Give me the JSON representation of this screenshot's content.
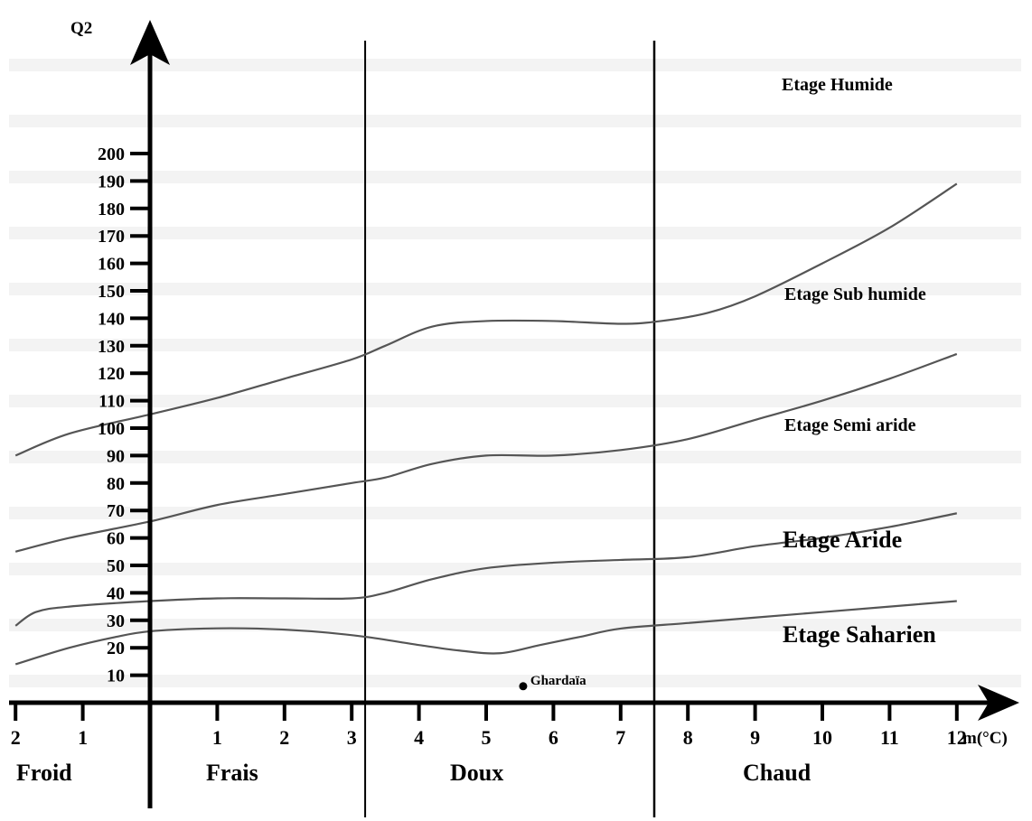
{
  "chart_data": {
    "type": "line",
    "ylabel": "Q2",
    "xlabel": "m(°C)",
    "y_ticks": [
      "200",
      "190",
      "180",
      "170",
      "160",
      "150",
      "140",
      "130",
      "120",
      "110",
      "100",
      "90",
      "80",
      "70",
      "60",
      "50",
      "40",
      "30",
      "20",
      "10"
    ],
    "x_ticks": [
      {
        "label": "2",
        "m": -2
      },
      {
        "label": "1",
        "m": -1
      },
      {
        "label": "1",
        "m": 1
      },
      {
        "label": "2",
        "m": 2
      },
      {
        "label": "3",
        "m": 3
      },
      {
        "label": "4",
        "m": 4
      },
      {
        "label": "5",
        "m": 5
      },
      {
        "label": "6",
        "m": 6
      },
      {
        "label": "7",
        "m": 7
      },
      {
        "label": "8",
        "m": 8
      },
      {
        "label": "9",
        "m": 9
      },
      {
        "label": "10",
        "m": 10
      },
      {
        "label": "11",
        "m": 11
      },
      {
        "label": "12",
        "m": 12
      }
    ],
    "zones": [
      "Froid",
      "Frais",
      "Doux",
      "Chaud"
    ],
    "zone_boundaries_m": [
      3.2,
      7.5
    ],
    "etage_labels": [
      "Etage Humide",
      "Etage Sub humide",
      "Etage Semi aride",
      "Etage Aride",
      "Etage Saharien"
    ],
    "boundary_curves": [
      {
        "points": [
          [
            -2.0,
            90
          ],
          [
            -1.2,
            98
          ],
          [
            0,
            105
          ],
          [
            1,
            111
          ],
          [
            2,
            118
          ],
          [
            3,
            125
          ],
          [
            3.5,
            130
          ],
          [
            4.2,
            137
          ],
          [
            5,
            139
          ],
          [
            6,
            139
          ],
          [
            7,
            138
          ],
          [
            7.6,
            139
          ],
          [
            8.3,
            142
          ],
          [
            9,
            148
          ],
          [
            10,
            160
          ],
          [
            11,
            173
          ],
          [
            12,
            189
          ]
        ]
      },
      {
        "points": [
          [
            -2.0,
            55
          ],
          [
            -1.2,
            60
          ],
          [
            0,
            66
          ],
          [
            1,
            72
          ],
          [
            2,
            76
          ],
          [
            3,
            80
          ],
          [
            3.5,
            82
          ],
          [
            4.2,
            87
          ],
          [
            5,
            90
          ],
          [
            6,
            90
          ],
          [
            7,
            92
          ],
          [
            8,
            96
          ],
          [
            9,
            103
          ],
          [
            10,
            110
          ],
          [
            11,
            118
          ],
          [
            12,
            127
          ]
        ]
      },
      {
        "points": [
          [
            -2.0,
            28
          ],
          [
            -1.7,
            33
          ],
          [
            -1.2,
            35
          ],
          [
            0,
            37
          ],
          [
            1,
            38
          ],
          [
            2,
            38
          ],
          [
            3,
            38
          ],
          [
            3.5,
            40
          ],
          [
            4.2,
            45
          ],
          [
            5,
            49
          ],
          [
            6,
            51
          ],
          [
            7,
            52
          ],
          [
            8,
            53
          ],
          [
            9,
            57
          ],
          [
            10,
            60
          ],
          [
            11,
            64
          ],
          [
            12,
            69
          ]
        ]
      },
      {
        "points": [
          [
            -2.0,
            14
          ],
          [
            -1.2,
            20
          ],
          [
            -0.5,
            24
          ],
          [
            0,
            26
          ],
          [
            0.8,
            27
          ],
          [
            1.6,
            27
          ],
          [
            2.4,
            26
          ],
          [
            3.2,
            24
          ],
          [
            4,
            21
          ],
          [
            4.6,
            19
          ],
          [
            5.2,
            18
          ],
          [
            5.8,
            21
          ],
          [
            6.4,
            24
          ],
          [
            7,
            27
          ],
          [
            8,
            29
          ],
          [
            9,
            31
          ],
          [
            10,
            33
          ],
          [
            11,
            35
          ],
          [
            12,
            37
          ]
        ]
      }
    ],
    "point": {
      "label": "Ghardaïa",
      "m": 5.55,
      "Q2": 6
    }
  }
}
